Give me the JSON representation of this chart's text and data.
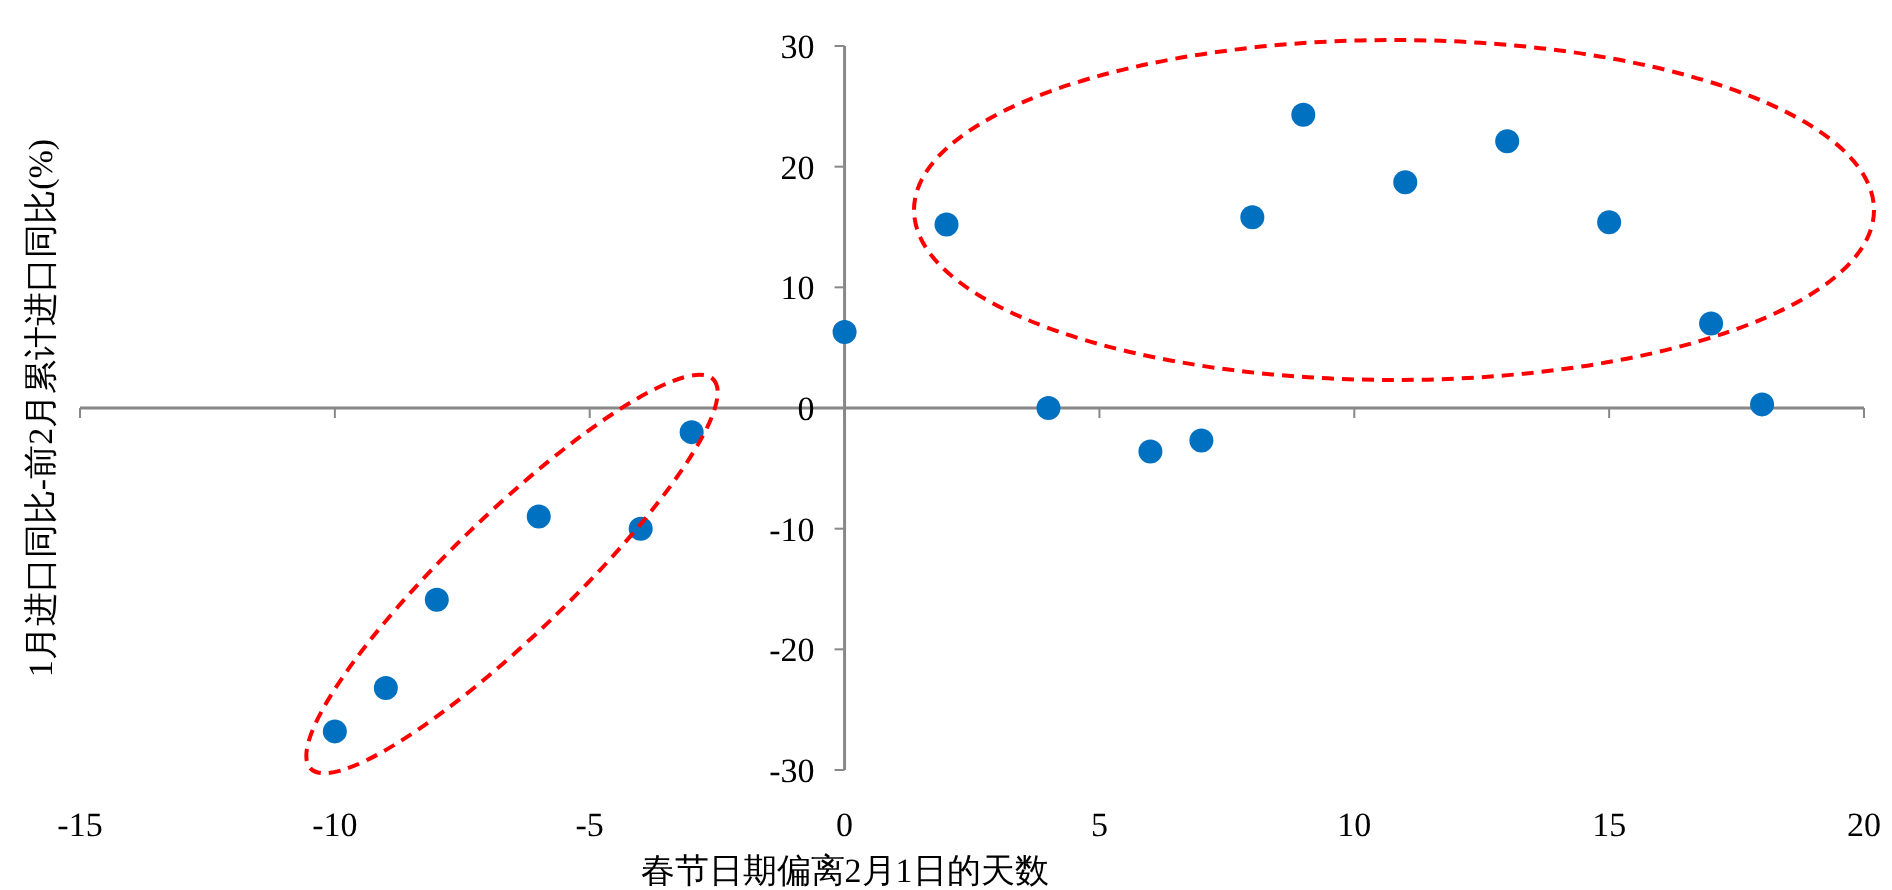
{
  "chart_data": {
    "type": "scatter",
    "xlabel": "春节日期偏离2月1日的天数",
    "ylabel": "1月进口同比-前2月累计进口同比(%)",
    "x": [
      -10,
      -9,
      -8,
      -6,
      -4,
      -3,
      0,
      2,
      4,
      6,
      7,
      8,
      9,
      11,
      13,
      15,
      17,
      18
    ],
    "series": [
      {
        "color": "#0070c0",
        "values": [
          -26.8,
          -23.2,
          -15.9,
          -9,
          -10,
          -2,
          6.3,
          15.2,
          0,
          -3.6,
          -2.7,
          15.8,
          24.3,
          18.7,
          22.1,
          15.4,
          7,
          0.3
        ]
      }
    ],
    "xlim": [
      -15,
      20
    ],
    "xticks": [
      -15,
      -10,
      -5,
      0,
      5,
      10,
      15,
      20
    ],
    "ylim": [
      -30,
      30
    ],
    "yticks": [
      -30,
      -20,
      -10,
      0,
      10,
      20,
      30
    ],
    "marker": "circle"
  }
}
